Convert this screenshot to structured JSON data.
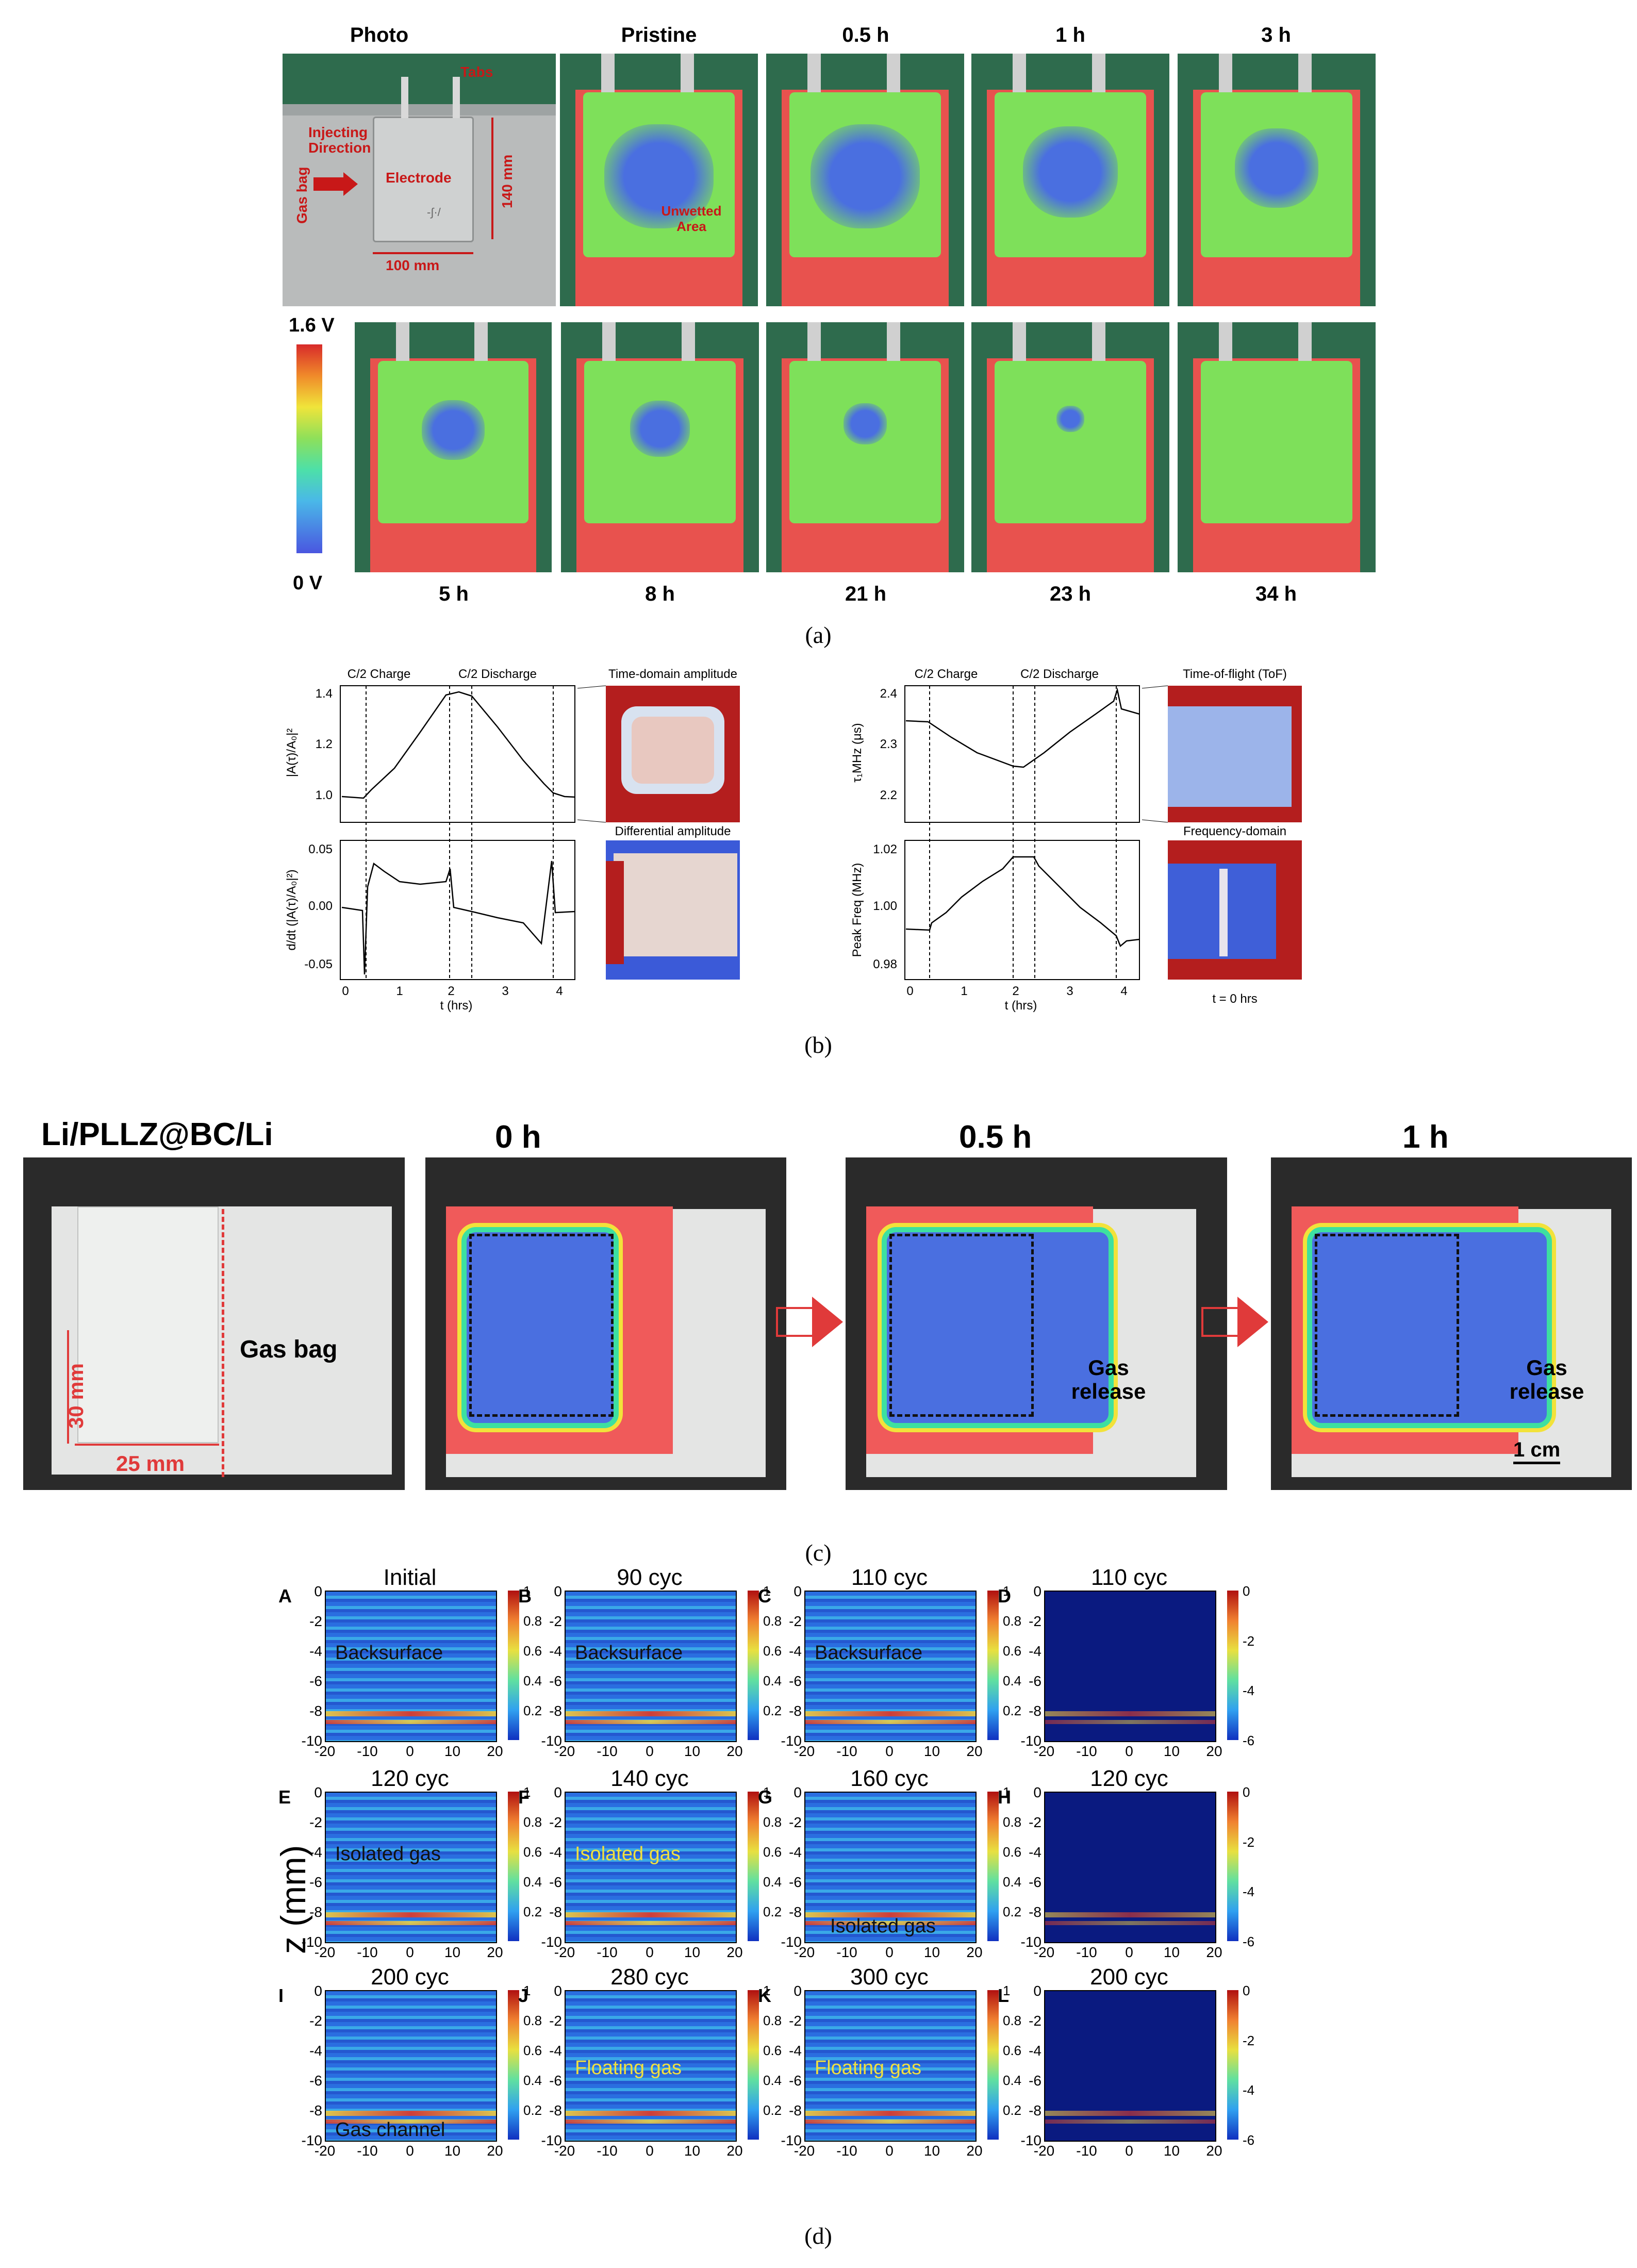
{
  "panel_a": {
    "caption": "(a)",
    "top_labels": [
      "Photo",
      "Pristine",
      "0.5 h",
      "1 h",
      "3 h"
    ],
    "bottom_labels": [
      "5 h",
      "8 h",
      "21 h",
      "23 h",
      "34 h"
    ],
    "photo_annotations": {
      "tabs": "Tabs",
      "injecting": "Injecting Direction",
      "gas_bag": "Gas bag",
      "electrode": "Electrode",
      "height": "140 mm",
      "width": "100 mm",
      "mark": "-∫·/"
    },
    "unwetted": "Unwetted Area",
    "colorbar": {
      "max": "1.6 V",
      "min": "0 V"
    },
    "blob_fraction": [
      0.55,
      0.55,
      0.48,
      0.42,
      0.32,
      0.3,
      0.22,
      0.14,
      0.0
    ]
  },
  "panel_b": {
    "caption": "(b)",
    "left": {
      "phases": [
        "C/2 Charge",
        "C/2 Discharge"
      ],
      "top_ylabel": "|A(τ)/A₀|²",
      "top_yticks": [
        "1.4",
        "1.2",
        "1.0"
      ],
      "bottom_ylabel": "d/dt (|A(τ)/A₀|²)",
      "bottom_yticks": [
        "0.05",
        "0.00",
        "-0.05"
      ],
      "xticks": [
        "0",
        "1",
        "2",
        "3",
        "4"
      ],
      "xlabel": "t (hrs)",
      "map_titles": [
        "Time-domain amplitude",
        "Differential amplitude"
      ]
    },
    "right": {
      "phases": [
        "C/2 Charge",
        "C/2 Discharge"
      ],
      "top_ylabel": "τ₁MHz (μs)",
      "top_yticks": [
        "2.4",
        "2.3",
        "2.2"
      ],
      "bottom_ylabel": "Peak Freq (MHz)",
      "bottom_yticks": [
        "1.02",
        "1.00",
        "0.98"
      ],
      "xticks": [
        "0",
        "1",
        "2",
        "3",
        "4"
      ],
      "xlabel": "t (hrs)",
      "map_titles": [
        "Time-of-flight (ToF)",
        "Frequency-domain"
      ],
      "map_footer": "t = 0 hrs"
    }
  },
  "panel_c": {
    "caption": "(c)",
    "labels": [
      "Li/PLLZ@BC/Li",
      "0 h",
      "0.5 h",
      "1 h"
    ],
    "height": "30 mm",
    "width": "25 mm",
    "gas_bag": "Gas bag",
    "gas_release": "Gas release",
    "scale": "1 cm"
  },
  "panel_d": {
    "caption": "(d)",
    "ylabel": "z (mm)",
    "yticks": [
      "0",
      "-2",
      "-4",
      "-6",
      "-8",
      "-10"
    ],
    "xticks": [
      "-20",
      "-10",
      "0",
      "10",
      "20"
    ],
    "cbar_linear": [
      "1",
      "0.8",
      "0.6",
      "0.4",
      "0.2"
    ],
    "cbar_log": [
      "0",
      "-2",
      "-4",
      "-6"
    ],
    "panels": [
      {
        "letter": "A",
        "title": "Initial",
        "note": "Backsurface"
      },
      {
        "letter": "B",
        "title": "90 cyc",
        "note": "Backsurface"
      },
      {
        "letter": "C",
        "title": "110 cyc",
        "note": "Backsurface"
      },
      {
        "letter": "D",
        "title": "110 cyc",
        "note": ""
      },
      {
        "letter": "E",
        "title": "120 cyc",
        "note": "Isolated gas"
      },
      {
        "letter": "F",
        "title": "140 cyc",
        "note": "Isolated gas"
      },
      {
        "letter": "G",
        "title": "160 cyc",
        "note": "Isolated gas"
      },
      {
        "letter": "H",
        "title": "120 cyc",
        "note": ""
      },
      {
        "letter": "I",
        "title": "200 cyc",
        "note": "Gas channel"
      },
      {
        "letter": "J",
        "title": "280 cyc",
        "note": "Floating gas"
      },
      {
        "letter": "K",
        "title": "300 cyc",
        "note": "Floating gas"
      },
      {
        "letter": "L",
        "title": "200 cyc",
        "note": ""
      }
    ]
  },
  "colors": {
    "thermal_green": "#7ee05a",
    "thermal_red": "#e8524e",
    "wet_blue": "#4a6fe0",
    "map_red": "#b41e1e",
    "jet_dark": "#0a1a80"
  }
}
